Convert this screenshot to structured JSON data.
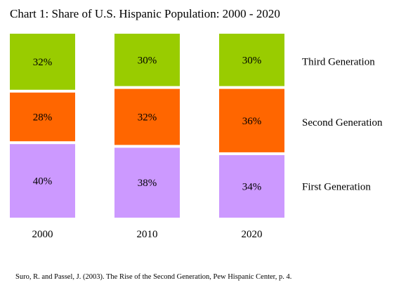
{
  "chart_data": {
    "type": "bar",
    "stacked": true,
    "title": "Chart 1: Share of U.S. Hispanic Population: 2000 - 2020",
    "categories": [
      "2000",
      "2010",
      "2020"
    ],
    "series": [
      {
        "name": "First Generation",
        "values": [
          40,
          38,
          34
        ],
        "labels": [
          "40%",
          "38%",
          "34%"
        ],
        "color": "#cc99ff"
      },
      {
        "name": "Second Generation",
        "values": [
          28,
          32,
          36
        ],
        "labels": [
          "28%",
          "32%",
          "36%"
        ],
        "color": "#ff6600"
      },
      {
        "name": "Third Generation",
        "values": [
          32,
          30,
          30
        ],
        "labels": [
          "32%",
          "30%",
          "30%"
        ],
        "color": "#99cc00"
      }
    ],
    "ylim": [
      0,
      100
    ],
    "grid": false,
    "legend": "right"
  },
  "source": "Suro, R. and Passel, J. (2003). The Rise of the Second Generation, Pew Hispanic Center, p. 4."
}
